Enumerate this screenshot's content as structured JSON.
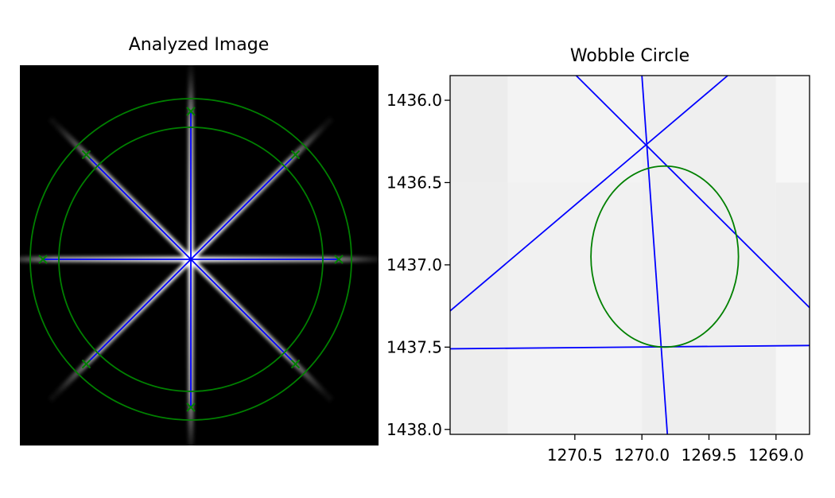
{
  "colors": {
    "background": "#ffffff",
    "image_background": "#000000",
    "ray": "#0000ff",
    "circle": "#008000",
    "axis": "#000000"
  },
  "left_panel": {
    "title": "Analyzed Image",
    "spoke_angles_deg": [
      90,
      45,
      0,
      -45,
      -90,
      -135,
      180,
      135
    ],
    "circles": [
      "outer",
      "inner"
    ],
    "markers": "x"
  },
  "chart_data": {
    "type": "line",
    "title": "Wobble Circle",
    "xlabel": "",
    "ylabel": "",
    "xlim": [
      1271.43,
      1268.75
    ],
    "ylim": [
      1438.03,
      1435.85
    ],
    "x_ticks": [
      "1270.5",
      "1270.0",
      "1269.5",
      "1269.0"
    ],
    "x_tick_values": [
      1270.5,
      1270.0,
      1269.5,
      1269.0
    ],
    "y_ticks": [
      "1436.0",
      "1436.5",
      "1437.0",
      "1437.5",
      "1438.0"
    ],
    "y_tick_values": [
      1436.0,
      1436.5,
      1437.0,
      1437.5,
      1438.0
    ],
    "grid": false,
    "background_pixels": [
      {
        "x0": 1271.5,
        "x1": 1271.0,
        "y0": 1435.5,
        "y1": 1436.5,
        "color": "#ececec"
      },
      {
        "x0": 1271.0,
        "x1": 1270.0,
        "y0": 1435.5,
        "y1": 1436.5,
        "color": "#f3f3f3"
      },
      {
        "x0": 1270.0,
        "x1": 1269.0,
        "y0": 1435.5,
        "y1": 1436.5,
        "color": "#efefef"
      },
      {
        "x0": 1269.0,
        "x1": 1268.5,
        "y0": 1435.5,
        "y1": 1436.5,
        "color": "#f7f7f7"
      },
      {
        "x0": 1271.5,
        "x1": 1271.0,
        "y0": 1436.5,
        "y1": 1437.5,
        "color": "#ededed"
      },
      {
        "x0": 1271.0,
        "x1": 1270.0,
        "y0": 1436.5,
        "y1": 1437.5,
        "color": "#f1f1f1"
      },
      {
        "x0": 1270.0,
        "x1": 1269.0,
        "y0": 1436.5,
        "y1": 1437.5,
        "color": "#efefef"
      },
      {
        "x0": 1269.0,
        "x1": 1268.5,
        "y0": 1436.5,
        "y1": 1437.5,
        "color": "#eeeeee"
      },
      {
        "x0": 1271.5,
        "x1": 1271.0,
        "y0": 1437.5,
        "y1": 1438.5,
        "color": "#ededed"
      },
      {
        "x0": 1271.0,
        "x1": 1270.0,
        "y0": 1437.5,
        "y1": 1438.5,
        "color": "#f3f3f3"
      },
      {
        "x0": 1270.0,
        "x1": 1269.0,
        "y0": 1437.5,
        "y1": 1438.5,
        "color": "#eeeeee"
      },
      {
        "x0": 1269.0,
        "x1": 1268.5,
        "y0": 1437.5,
        "y1": 1438.5,
        "color": "#f7f7f7"
      }
    ],
    "lines": [
      {
        "name": "",
        "x": [
          1270.0,
          1269.81
        ],
        "y": [
          1435.85,
          1438.03
        ]
      },
      {
        "name": "",
        "x": [
          1271.43,
          1268.75
        ],
        "y": [
          1437.51,
          1437.49
        ]
      },
      {
        "name": "",
        "x": [
          1271.43,
          1269.36
        ],
        "y": [
          1437.28,
          1435.85
        ]
      },
      {
        "name": "",
        "x": [
          1270.49,
          1268.75
        ],
        "y": [
          1435.85,
          1437.26
        ]
      }
    ],
    "circle": {
      "cx": 1269.83,
      "cy": 1436.95,
      "r": 0.55
    }
  }
}
